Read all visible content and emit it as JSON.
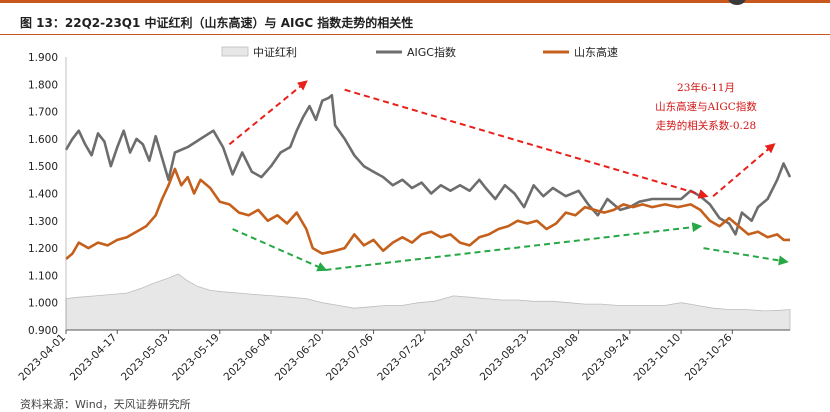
{
  "figure": {
    "title": "图 13：22Q2-23Q1 中证红利（山东高速）与 AIGC 指数走势的相关性",
    "source": "资料来源：Wind，天风证券研究所"
  },
  "chart_data": {
    "type": "area",
    "xlim": [
      "2023-04-01",
      "2023-11-13"
    ],
    "ylim": [
      0.9,
      1.9
    ],
    "y_ticks": [
      "0.900",
      "1.000",
      "1.100",
      "1.200",
      "1.300",
      "1.400",
      "1.500",
      "1.600",
      "1.700",
      "1.800",
      "1.900"
    ],
    "x_ticks": [
      "2023-04-01",
      "2023-04-17",
      "2023-05-03",
      "2023-05-19",
      "2023-06-04",
      "2023-06-20",
      "2023-07-06",
      "2023-07-22",
      "2023-08-07",
      "2023-08-23",
      "2023-09-08",
      "2023-09-24",
      "2023-10-10",
      "2023-10-26"
    ],
    "legend_position": "top",
    "series": [
      {
        "name": "中证红利",
        "kind": "area",
        "color": "#e7e7e7",
        "edge_color": "#bdbdbd",
        "data": [
          [
            "2023-04-01",
            1.015
          ],
          [
            "2023-04-05",
            1.02
          ],
          [
            "2023-04-10",
            1.025
          ],
          [
            "2023-04-15",
            1.03
          ],
          [
            "2023-04-20",
            1.035
          ],
          [
            "2023-04-25",
            1.055
          ],
          [
            "2023-04-28",
            1.07
          ],
          [
            "2023-05-03",
            1.09
          ],
          [
            "2023-05-06",
            1.105
          ],
          [
            "2023-05-09",
            1.08
          ],
          [
            "2023-05-12",
            1.06
          ],
          [
            "2023-05-16",
            1.045
          ],
          [
            "2023-05-20",
            1.04
          ],
          [
            "2023-05-25",
            1.035
          ],
          [
            "2023-05-30",
            1.03
          ],
          [
            "2023-06-05",
            1.025
          ],
          [
            "2023-06-10",
            1.02
          ],
          [
            "2023-06-15",
            1.015
          ],
          [
            "2023-06-20",
            1.0
          ],
          [
            "2023-06-25",
            0.99
          ],
          [
            "2023-06-30",
            0.98
          ],
          [
            "2023-07-05",
            0.985
          ],
          [
            "2023-07-10",
            0.99
          ],
          [
            "2023-07-15",
            0.99
          ],
          [
            "2023-07-20",
            1.0
          ],
          [
            "2023-07-25",
            1.005
          ],
          [
            "2023-07-31",
            1.025
          ],
          [
            "2023-08-05",
            1.02
          ],
          [
            "2023-08-10",
            1.015
          ],
          [
            "2023-08-15",
            1.01
          ],
          [
            "2023-08-20",
            1.01
          ],
          [
            "2023-08-25",
            1.005
          ],
          [
            "2023-08-31",
            1.005
          ],
          [
            "2023-09-05",
            1.0
          ],
          [
            "2023-09-10",
            0.995
          ],
          [
            "2023-09-15",
            0.995
          ],
          [
            "2023-09-20",
            0.99
          ],
          [
            "2023-09-25",
            0.99
          ],
          [
            "2023-09-30",
            0.99
          ],
          [
            "2023-10-05",
            0.99
          ],
          [
            "2023-10-10",
            1.0
          ],
          [
            "2023-10-15",
            0.99
          ],
          [
            "2023-10-20",
            0.98
          ],
          [
            "2023-10-25",
            0.975
          ],
          [
            "2023-10-30",
            0.975
          ],
          [
            "2023-11-05",
            0.97
          ],
          [
            "2023-11-10",
            0.972
          ],
          [
            "2023-11-13",
            0.975
          ]
        ]
      },
      {
        "name": "AIGC指数",
        "kind": "line",
        "color": "#6d6d6d",
        "data": [
          [
            "2023-04-01",
            1.56
          ],
          [
            "2023-04-03",
            1.6
          ],
          [
            "2023-04-05",
            1.63
          ],
          [
            "2023-04-07",
            1.58
          ],
          [
            "2023-04-09",
            1.54
          ],
          [
            "2023-04-11",
            1.62
          ],
          [
            "2023-04-13",
            1.59
          ],
          [
            "2023-04-15",
            1.5
          ],
          [
            "2023-04-17",
            1.57
          ],
          [
            "2023-04-19",
            1.63
          ],
          [
            "2023-04-21",
            1.55
          ],
          [
            "2023-04-23",
            1.6
          ],
          [
            "2023-04-25",
            1.58
          ],
          [
            "2023-04-27",
            1.52
          ],
          [
            "2023-04-29",
            1.61
          ],
          [
            "2023-05-01",
            1.53
          ],
          [
            "2023-05-03",
            1.45
          ],
          [
            "2023-05-05",
            1.55
          ],
          [
            "2023-05-09",
            1.57
          ],
          [
            "2023-05-13",
            1.6
          ],
          [
            "2023-05-17",
            1.63
          ],
          [
            "2023-05-20",
            1.57
          ],
          [
            "2023-05-23",
            1.47
          ],
          [
            "2023-05-26",
            1.55
          ],
          [
            "2023-05-29",
            1.48
          ],
          [
            "2023-06-01",
            1.46
          ],
          [
            "2023-06-04",
            1.5
          ],
          [
            "2023-06-07",
            1.55
          ],
          [
            "2023-06-10",
            1.57
          ],
          [
            "2023-06-12",
            1.63
          ],
          [
            "2023-06-14",
            1.68
          ],
          [
            "2023-06-16",
            1.72
          ],
          [
            "2023-06-18",
            1.67
          ],
          [
            "2023-06-20",
            1.74
          ],
          [
            "2023-06-22",
            1.75
          ],
          [
            "2023-06-23",
            1.76
          ],
          [
            "2023-06-24",
            1.65
          ],
          [
            "2023-06-27",
            1.6
          ],
          [
            "2023-06-30",
            1.54
          ],
          [
            "2023-07-03",
            1.5
          ],
          [
            "2023-07-06",
            1.48
          ],
          [
            "2023-07-09",
            1.46
          ],
          [
            "2023-07-12",
            1.43
          ],
          [
            "2023-07-15",
            1.45
          ],
          [
            "2023-07-18",
            1.42
          ],
          [
            "2023-07-21",
            1.44
          ],
          [
            "2023-07-24",
            1.4
          ],
          [
            "2023-07-27",
            1.43
          ],
          [
            "2023-07-30",
            1.41
          ],
          [
            "2023-08-02",
            1.43
          ],
          [
            "2023-08-05",
            1.41
          ],
          [
            "2023-08-08",
            1.45
          ],
          [
            "2023-08-10",
            1.42
          ],
          [
            "2023-08-13",
            1.38
          ],
          [
            "2023-08-16",
            1.43
          ],
          [
            "2023-08-19",
            1.4
          ],
          [
            "2023-08-22",
            1.35
          ],
          [
            "2023-08-25",
            1.43
          ],
          [
            "2023-08-28",
            1.39
          ],
          [
            "2023-08-31",
            1.42
          ],
          [
            "2023-09-04",
            1.39
          ],
          [
            "2023-09-08",
            1.41
          ],
          [
            "2023-09-11",
            1.36
          ],
          [
            "2023-09-14",
            1.32
          ],
          [
            "2023-09-17",
            1.38
          ],
          [
            "2023-09-21",
            1.34
          ],
          [
            "2023-09-24",
            1.35
          ],
          [
            "2023-09-27",
            1.37
          ],
          [
            "2023-10-01",
            1.38
          ],
          [
            "2023-10-06",
            1.38
          ],
          [
            "2023-10-10",
            1.38
          ],
          [
            "2023-10-13",
            1.41
          ],
          [
            "2023-10-16",
            1.39
          ],
          [
            "2023-10-19",
            1.36
          ],
          [
            "2023-10-22",
            1.31
          ],
          [
            "2023-10-25",
            1.29
          ],
          [
            "2023-10-27",
            1.25
          ],
          [
            "2023-10-29",
            1.33
          ],
          [
            "2023-11-01",
            1.3
          ],
          [
            "2023-11-03",
            1.35
          ],
          [
            "2023-11-06",
            1.38
          ],
          [
            "2023-11-09",
            1.45
          ],
          [
            "2023-11-11",
            1.51
          ],
          [
            "2023-11-13",
            1.46
          ]
        ]
      },
      {
        "name": "山东高速",
        "kind": "line",
        "color": "#c4601c",
        "data": [
          [
            "2023-04-01",
            1.16
          ],
          [
            "2023-04-03",
            1.18
          ],
          [
            "2023-04-05",
            1.22
          ],
          [
            "2023-04-08",
            1.2
          ],
          [
            "2023-04-11",
            1.22
          ],
          [
            "2023-04-14",
            1.21
          ],
          [
            "2023-04-17",
            1.23
          ],
          [
            "2023-04-20",
            1.24
          ],
          [
            "2023-04-23",
            1.26
          ],
          [
            "2023-04-26",
            1.28
          ],
          [
            "2023-04-29",
            1.32
          ],
          [
            "2023-05-01",
            1.38
          ],
          [
            "2023-05-03",
            1.43
          ],
          [
            "2023-05-05",
            1.49
          ],
          [
            "2023-05-07",
            1.43
          ],
          [
            "2023-05-09",
            1.46
          ],
          [
            "2023-05-11",
            1.4
          ],
          [
            "2023-05-13",
            1.45
          ],
          [
            "2023-05-16",
            1.42
          ],
          [
            "2023-05-19",
            1.37
          ],
          [
            "2023-05-22",
            1.36
          ],
          [
            "2023-05-25",
            1.33
          ],
          [
            "2023-05-28",
            1.32
          ],
          [
            "2023-05-31",
            1.34
          ],
          [
            "2023-06-03",
            1.3
          ],
          [
            "2023-06-06",
            1.32
          ],
          [
            "2023-06-09",
            1.29
          ],
          [
            "2023-06-12",
            1.33
          ],
          [
            "2023-06-15",
            1.27
          ],
          [
            "2023-06-17",
            1.2
          ],
          [
            "2023-06-20",
            1.18
          ],
          [
            "2023-06-24",
            1.19
          ],
          [
            "2023-06-27",
            1.2
          ],
          [
            "2023-06-30",
            1.25
          ],
          [
            "2023-07-03",
            1.21
          ],
          [
            "2023-07-06",
            1.23
          ],
          [
            "2023-07-09",
            1.19
          ],
          [
            "2023-07-12",
            1.22
          ],
          [
            "2023-07-15",
            1.24
          ],
          [
            "2023-07-18",
            1.22
          ],
          [
            "2023-07-21",
            1.25
          ],
          [
            "2023-07-24",
            1.26
          ],
          [
            "2023-07-27",
            1.24
          ],
          [
            "2023-07-30",
            1.25
          ],
          [
            "2023-08-02",
            1.22
          ],
          [
            "2023-08-05",
            1.21
          ],
          [
            "2023-08-08",
            1.24
          ],
          [
            "2023-08-11",
            1.25
          ],
          [
            "2023-08-14",
            1.27
          ],
          [
            "2023-08-17",
            1.28
          ],
          [
            "2023-08-20",
            1.3
          ],
          [
            "2023-08-23",
            1.29
          ],
          [
            "2023-08-26",
            1.3
          ],
          [
            "2023-08-29",
            1.27
          ],
          [
            "2023-09-01",
            1.29
          ],
          [
            "2023-09-04",
            1.33
          ],
          [
            "2023-09-07",
            1.32
          ],
          [
            "2023-09-10",
            1.35
          ],
          [
            "2023-09-13",
            1.34
          ],
          [
            "2023-09-16",
            1.33
          ],
          [
            "2023-09-19",
            1.34
          ],
          [
            "2023-09-22",
            1.36
          ],
          [
            "2023-09-25",
            1.35
          ],
          [
            "2023-09-28",
            1.36
          ],
          [
            "2023-10-01",
            1.35
          ],
          [
            "2023-10-05",
            1.36
          ],
          [
            "2023-10-09",
            1.35
          ],
          [
            "2023-10-13",
            1.36
          ],
          [
            "2023-10-16",
            1.34
          ],
          [
            "2023-10-19",
            1.3
          ],
          [
            "2023-10-22",
            1.28
          ],
          [
            "2023-10-25",
            1.31
          ],
          [
            "2023-10-28",
            1.28
          ],
          [
            "2023-10-31",
            1.25
          ],
          [
            "2023-11-03",
            1.26
          ],
          [
            "2023-11-06",
            1.24
          ],
          [
            "2023-11-09",
            1.25
          ],
          [
            "2023-11-11",
            1.23
          ],
          [
            "2023-11-13",
            1.23
          ]
        ]
      }
    ],
    "annotations": [
      {
        "kind": "text",
        "lines": [
          "23年6-11月",
          "山东高速与AIGC指数",
          "走势的相关系数-0.28"
        ],
        "color": "#d41414"
      },
      {
        "kind": "trend-arrows",
        "note": "dashed trend arrows drawn over the chart",
        "arrows": [
          {
            "color": "#e8201a",
            "from": [
              "2023-05-22",
              1.58
            ],
            "to": [
              "2023-06-15",
              1.81
            ]
          },
          {
            "color": "#e8201a",
            "from": [
              "2023-06-27",
              1.78
            ],
            "to": [
              "2023-10-18",
              1.39
            ]
          },
          {
            "color": "#e8201a",
            "from": [
              "2023-10-20",
              1.39
            ],
            "to": [
              "2023-11-08",
              1.58
            ]
          },
          {
            "color": "#26a845",
            "from": [
              "2023-05-23",
              1.27
            ],
            "to": [
              "2023-06-21",
              1.12
            ]
          },
          {
            "color": "#26a845",
            "from": [
              "2023-06-21",
              1.12
            ],
            "to": [
              "2023-10-16",
              1.28
            ]
          },
          {
            "color": "#26a845",
            "from": [
              "2023-10-17",
              1.2
            ],
            "to": [
              "2023-11-12",
              1.15
            ]
          }
        ]
      }
    ]
  }
}
